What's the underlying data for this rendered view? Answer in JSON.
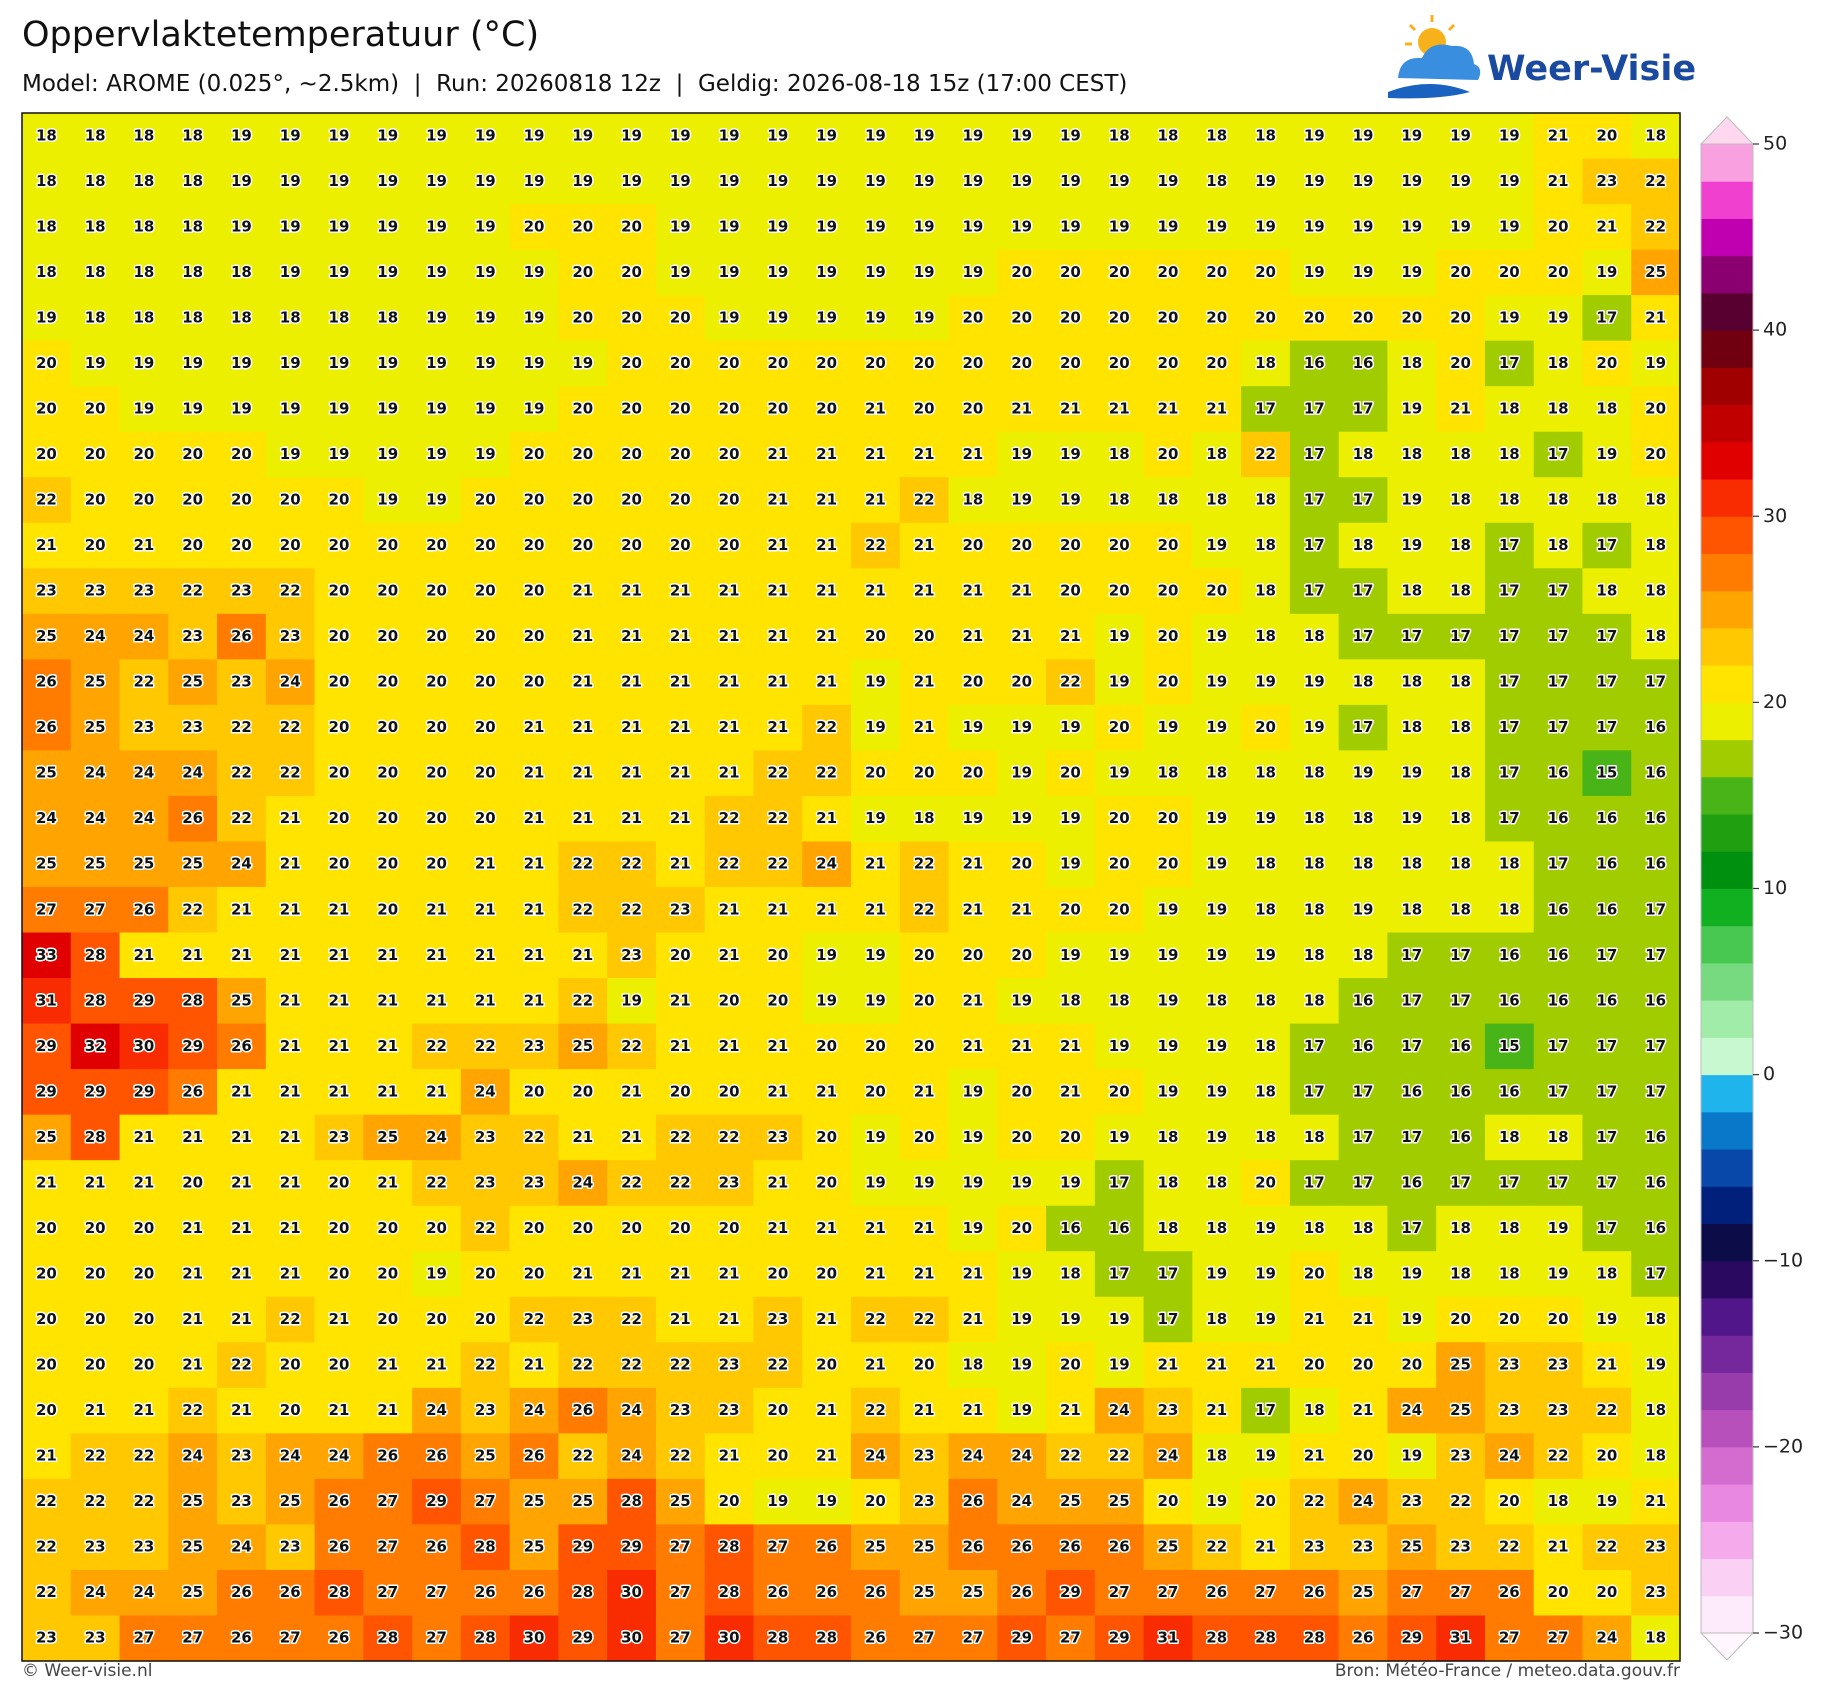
{
  "header": {
    "title": "Oppervlaktetemperatuur (°C)",
    "subtitle": "Model: AROME (0.025°, ~2.5km)  |  Run: 20260818 12z  |  Geldig: 2026-08-18 15z (17:00 CEST)"
  },
  "logo": {
    "text": "Weer-Visie"
  },
  "map": {
    "values": [
      [
        18,
        18,
        18,
        18,
        19,
        19,
        19,
        19,
        19,
        19,
        19,
        19,
        19,
        19,
        19,
        19,
        19,
        19,
        19,
        19,
        19,
        19,
        18,
        18,
        18,
        18,
        19,
        19,
        19,
        19,
        19,
        21,
        20,
        18
      ],
      [
        18,
        18,
        18,
        18,
        19,
        19,
        19,
        19,
        19,
        19,
        19,
        19,
        19,
        19,
        19,
        19,
        19,
        19,
        19,
        19,
        19,
        19,
        19,
        19,
        18,
        19,
        19,
        19,
        19,
        19,
        19,
        21,
        23,
        22
      ],
      [
        18,
        18,
        18,
        18,
        19,
        19,
        19,
        19,
        19,
        19,
        20,
        20,
        20,
        19,
        19,
        19,
        19,
        19,
        19,
        19,
        19,
        19,
        19,
        19,
        19,
        19,
        19,
        19,
        19,
        19,
        19,
        20,
        21,
        22
      ],
      [
        18,
        18,
        18,
        18,
        18,
        19,
        19,
        19,
        19,
        19,
        19,
        20,
        20,
        19,
        19,
        19,
        19,
        19,
        19,
        19,
        20,
        20,
        20,
        20,
        20,
        20,
        19,
        19,
        19,
        20,
        20,
        20,
        19,
        25
      ],
      [
        19,
        18,
        18,
        18,
        18,
        18,
        18,
        18,
        19,
        19,
        19,
        20,
        20,
        20,
        19,
        19,
        19,
        19,
        19,
        20,
        20,
        20,
        20,
        20,
        20,
        20,
        20,
        20,
        20,
        20,
        19,
        19,
        17,
        21
      ],
      [
        20,
        19,
        19,
        19,
        19,
        19,
        19,
        19,
        19,
        19,
        19,
        19,
        20,
        20,
        20,
        20,
        20,
        20,
        20,
        20,
        20,
        20,
        20,
        20,
        20,
        18,
        16,
        16,
        18,
        20,
        17,
        18,
        20,
        19
      ],
      [
        20,
        20,
        19,
        19,
        19,
        19,
        19,
        19,
        19,
        19,
        19,
        20,
        20,
        20,
        20,
        20,
        20,
        21,
        20,
        20,
        21,
        21,
        21,
        21,
        21,
        17,
        17,
        17,
        19,
        21,
        18,
        18,
        18,
        20
      ],
      [
        20,
        20,
        20,
        20,
        20,
        19,
        19,
        19,
        19,
        19,
        20,
        20,
        20,
        20,
        20,
        21,
        21,
        21,
        21,
        21,
        19,
        19,
        18,
        20,
        18,
        22,
        17,
        18,
        18,
        18,
        18,
        17,
        19,
        20
      ],
      [
        22,
        20,
        20,
        20,
        20,
        20,
        20,
        19,
        19,
        20,
        20,
        20,
        20,
        20,
        20,
        21,
        21,
        21,
        22,
        18,
        19,
        19,
        18,
        18,
        18,
        18,
        17,
        17,
        19,
        18,
        18,
        18,
        18,
        18
      ],
      [
        21,
        20,
        21,
        20,
        20,
        20,
        20,
        20,
        20,
        20,
        20,
        20,
        20,
        20,
        20,
        21,
        21,
        22,
        21,
        20,
        20,
        20,
        20,
        20,
        19,
        18,
        17,
        18,
        19,
        18,
        17,
        18,
        17,
        18
      ],
      [
        23,
        23,
        23,
        22,
        23,
        22,
        20,
        20,
        20,
        20,
        20,
        21,
        21,
        21,
        21,
        21,
        21,
        21,
        21,
        21,
        21,
        20,
        20,
        20,
        20,
        18,
        17,
        17,
        18,
        18,
        17,
        17,
        18,
        18
      ],
      [
        25,
        24,
        24,
        23,
        26,
        23,
        20,
        20,
        20,
        20,
        20,
        21,
        21,
        21,
        21,
        21,
        21,
        20,
        20,
        21,
        21,
        21,
        19,
        20,
        19,
        18,
        18,
        17,
        17,
        17,
        17,
        17,
        17,
        18
      ],
      [
        26,
        25,
        22,
        25,
        23,
        24,
        20,
        20,
        20,
        20,
        20,
        21,
        21,
        21,
        21,
        21,
        21,
        19,
        21,
        20,
        20,
        22,
        19,
        20,
        19,
        19,
        19,
        18,
        18,
        18,
        17,
        17,
        17,
        17
      ],
      [
        26,
        25,
        23,
        23,
        22,
        22,
        20,
        20,
        20,
        20,
        21,
        21,
        21,
        21,
        21,
        21,
        22,
        19,
        21,
        19,
        19,
        19,
        20,
        19,
        19,
        20,
        19,
        17,
        18,
        18,
        17,
        17,
        17,
        16
      ],
      [
        25,
        24,
        24,
        24,
        22,
        22,
        20,
        20,
        20,
        20,
        21,
        21,
        21,
        21,
        21,
        22,
        22,
        20,
        20,
        20,
        19,
        20,
        19,
        18,
        18,
        18,
        18,
        19,
        19,
        18,
        17,
        16,
        15,
        16
      ],
      [
        24,
        24,
        24,
        26,
        22,
        21,
        20,
        20,
        20,
        20,
        21,
        21,
        21,
        21,
        22,
        22,
        21,
        19,
        18,
        19,
        19,
        19,
        20,
        20,
        19,
        19,
        18,
        18,
        19,
        18,
        17,
        16,
        16,
        16
      ],
      [
        25,
        25,
        25,
        25,
        24,
        21,
        20,
        20,
        20,
        21,
        21,
        22,
        22,
        21,
        22,
        22,
        24,
        21,
        22,
        21,
        20,
        19,
        20,
        20,
        19,
        18,
        18,
        18,
        18,
        18,
        18,
        17,
        16,
        16
      ],
      [
        27,
        27,
        26,
        22,
        21,
        21,
        21,
        20,
        21,
        21,
        21,
        22,
        22,
        23,
        21,
        21,
        21,
        21,
        22,
        21,
        21,
        20,
        20,
        19,
        19,
        18,
        18,
        19,
        18,
        18,
        18,
        16,
        16,
        17
      ],
      [
        33,
        28,
        21,
        21,
        21,
        21,
        21,
        21,
        21,
        21,
        21,
        21,
        23,
        20,
        21,
        20,
        19,
        19,
        20,
        20,
        20,
        19,
        19,
        19,
        19,
        19,
        18,
        18,
        17,
        17,
        16,
        16,
        17,
        17
      ],
      [
        31,
        28,
        29,
        28,
        25,
        21,
        21,
        21,
        21,
        21,
        21,
        22,
        19,
        21,
        20,
        20,
        19,
        19,
        20,
        21,
        19,
        18,
        18,
        19,
        18,
        18,
        18,
        16,
        17,
        17,
        16,
        16,
        16,
        16
      ],
      [
        29,
        32,
        30,
        29,
        26,
        21,
        21,
        21,
        22,
        22,
        23,
        25,
        22,
        21,
        21,
        21,
        20,
        20,
        20,
        21,
        21,
        21,
        19,
        19,
        19,
        18,
        17,
        16,
        17,
        16,
        15,
        17,
        17,
        17
      ],
      [
        29,
        29,
        29,
        26,
        21,
        21,
        21,
        21,
        21,
        24,
        20,
        20,
        21,
        20,
        20,
        21,
        21,
        20,
        21,
        19,
        20,
        21,
        20,
        19,
        19,
        18,
        17,
        17,
        16,
        16,
        16,
        17,
        17,
        17
      ],
      [
        25,
        28,
        21,
        21,
        21,
        21,
        23,
        25,
        24,
        23,
        22,
        21,
        21,
        22,
        22,
        23,
        20,
        19,
        20,
        19,
        20,
        20,
        19,
        18,
        19,
        18,
        18,
        17,
        17,
        16,
        18,
        18,
        17,
        16
      ],
      [
        21,
        21,
        21,
        20,
        21,
        21,
        20,
        21,
        22,
        23,
        23,
        24,
        22,
        22,
        23,
        21,
        20,
        19,
        19,
        19,
        19,
        19,
        17,
        18,
        18,
        20,
        17,
        17,
        16,
        17,
        17,
        17,
        17,
        16
      ],
      [
        20,
        20,
        20,
        21,
        21,
        21,
        20,
        20,
        20,
        22,
        20,
        20,
        20,
        20,
        20,
        21,
        21,
        21,
        21,
        19,
        20,
        16,
        16,
        18,
        18,
        19,
        18,
        18,
        17,
        18,
        18,
        19,
        17,
        16
      ],
      [
        20,
        20,
        20,
        21,
        21,
        21,
        20,
        20,
        19,
        20,
        20,
        21,
        21,
        21,
        21,
        20,
        20,
        21,
        21,
        21,
        19,
        18,
        17,
        17,
        19,
        19,
        20,
        18,
        19,
        18,
        18,
        19,
        18,
        17
      ],
      [
        20,
        20,
        20,
        21,
        21,
        22,
        21,
        20,
        20,
        20,
        22,
        23,
        22,
        21,
        21,
        23,
        21,
        22,
        22,
        21,
        19,
        19,
        19,
        17,
        18,
        19,
        21,
        21,
        19,
        20,
        20,
        20,
        19,
        18
      ],
      [
        20,
        20,
        20,
        21,
        22,
        20,
        20,
        21,
        21,
        22,
        21,
        22,
        22,
        22,
        23,
        22,
        20,
        21,
        20,
        18,
        19,
        20,
        19,
        21,
        21,
        21,
        20,
        20,
        20,
        25,
        23,
        23,
        21,
        19
      ],
      [
        20,
        21,
        21,
        22,
        21,
        20,
        21,
        21,
        24,
        23,
        24,
        26,
        24,
        23,
        23,
        20,
        21,
        22,
        21,
        21,
        19,
        21,
        24,
        23,
        21,
        17,
        18,
        21,
        24,
        25,
        23,
        23,
        22,
        18
      ],
      [
        21,
        22,
        22,
        24,
        23,
        24,
        24,
        26,
        26,
        25,
        26,
        22,
        24,
        22,
        21,
        20,
        21,
        24,
        23,
        24,
        24,
        22,
        22,
        24,
        18,
        19,
        21,
        20,
        19,
        23,
        24,
        22,
        20,
        18
      ],
      [
        22,
        22,
        22,
        25,
        23,
        25,
        26,
        27,
        29,
        27,
        25,
        25,
        28,
        25,
        20,
        19,
        19,
        20,
        23,
        26,
        24,
        25,
        25,
        20,
        19,
        20,
        22,
        24,
        23,
        22,
        20,
        18,
        19,
        21
      ],
      [
        22,
        23,
        23,
        25,
        24,
        23,
        26,
        27,
        26,
        28,
        25,
        29,
        29,
        27,
        28,
        27,
        26,
        25,
        25,
        26,
        26,
        26,
        26,
        25,
        22,
        21,
        23,
        23,
        25,
        23,
        22,
        21,
        22,
        23
      ],
      [
        22,
        24,
        24,
        25,
        26,
        26,
        28,
        27,
        27,
        26,
        26,
        28,
        30,
        27,
        28,
        26,
        26,
        26,
        25,
        25,
        26,
        29,
        27,
        27,
        26,
        27,
        26,
        25,
        27,
        27,
        26,
        20,
        20,
        23
      ],
      [
        23,
        23,
        27,
        27,
        26,
        27,
        26,
        28,
        27,
        28,
        30,
        29,
        30,
        27,
        30,
        28,
        28,
        26,
        27,
        27,
        29,
        27,
        29,
        31,
        28,
        28,
        28,
        26,
        29,
        31,
        27,
        27,
        24,
        18
      ]
    ]
  },
  "colorbar": {
    "min": -30,
    "max": 50,
    "colors": [
      "#fdeafb",
      "#fbd0f5",
      "#f5aaec",
      "#e888e0",
      "#d46cd0",
      "#b850bc",
      "#983cac",
      "#74289c",
      "#50168a",
      "#2a0a60",
      "#0c0c48",
      "#00207c",
      "#0848a8",
      "#0a78c8",
      "#20b4ec",
      "#c8f8d0",
      "#a0eca8",
      "#78da80",
      "#48c850",
      "#10b020",
      "#009010",
      "#20a010",
      "#48b418",
      "#a0cc00",
      "#ecf000",
      "#ffe400",
      "#ffc800",
      "#ffa400",
      "#ff7c00",
      "#ff5400",
      "#f82c00",
      "#e00000",
      "#c00000",
      "#a00000",
      "#700010",
      "#580030",
      "#8a0070",
      "#c000b0",
      "#f040d0",
      "#f8a0e0"
    ],
    "under_color": "#fff6fe",
    "over_color": "#ffd8f0",
    "ticks": [
      {
        "value": -30,
        "label": "−30"
      },
      {
        "value": -20,
        "label": "−20"
      },
      {
        "value": -10,
        "label": "−10"
      },
      0,
      10,
      20,
      30,
      40,
      50
    ]
  },
  "footer": {
    "left": "© Weer-visie.nl",
    "right": "Bron: Météo-France / meteo.data.gouv.fr"
  }
}
